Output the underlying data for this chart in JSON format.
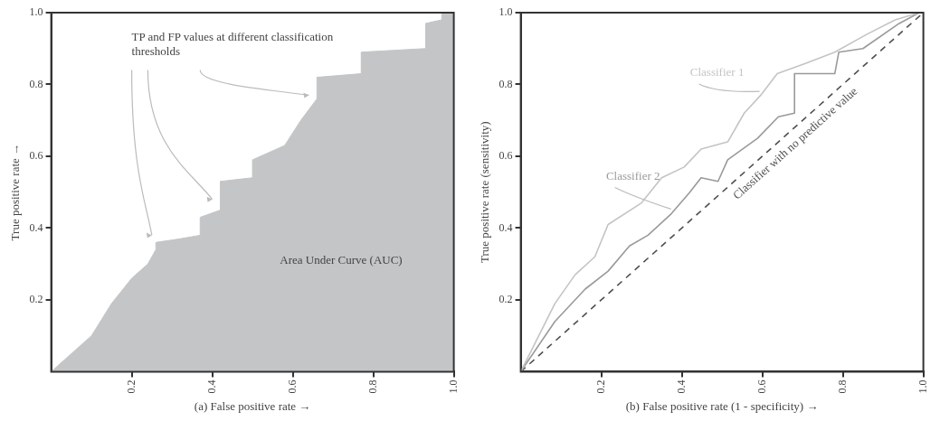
{
  "chart_data": [
    {
      "type": "area",
      "xlabel": "(a) False positive rate →",
      "ylabel": "True positive rate →",
      "xlim": [
        0,
        1
      ],
      "ylim": [
        0,
        1
      ],
      "xticks": [
        0.2,
        0.4,
        0.6,
        0.8,
        {
          "value": 1,
          "label": "1.0"
        }
      ],
      "yticks": [
        0.2,
        0.4,
        0.6,
        0.8,
        {
          "value": 1,
          "label": "1.0"
        }
      ],
      "annotations": [
        "TP and FP values at different classification thresholds",
        "Area Under Curve (AUC)"
      ],
      "series": [
        {
          "color": "#c3c5c7",
          "x": [
            0,
            0.05,
            0.1,
            0.15,
            0.2,
            0.24,
            0.26,
            0.26,
            0.32,
            0.37,
            0.37,
            0.42,
            0.42,
            0.5,
            0.5,
            0.58,
            0.62,
            0.66,
            0.66,
            0.77,
            0.77,
            0.93,
            0.93,
            0.97,
            0.97,
            1
          ],
          "values": [
            0,
            0.05,
            0.1,
            0.19,
            0.26,
            0.3,
            0.34,
            0.36,
            0.37,
            0.38,
            0.43,
            0.45,
            0.53,
            0.54,
            0.59,
            0.63,
            0.7,
            0.76,
            0.82,
            0.83,
            0.89,
            0.9,
            0.97,
            0.98,
            1,
            1
          ]
        }
      ]
    },
    {
      "type": "line",
      "xlabel": "(b) False positive rate (1 - specificity) →",
      "ylabel": "True positive rate (sensitivity)",
      "xlim": [
        0,
        1
      ],
      "ylim": [
        0,
        1
      ],
      "xticks": [
        0.2,
        0.4,
        0.6,
        0.8,
        {
          "value": 1,
          "label": "1.0"
        }
      ],
      "yticks": [
        0.2,
        0.4,
        0.6,
        0.8,
        {
          "value": 1,
          "label": "1.0"
        }
      ],
      "marker": "none",
      "series": [
        {
          "name": "Classifier 1",
          "color": "#c4c4c4",
          "x": [
            0,
            0.085,
            0.135,
            0.184,
            0.217,
            0.3,
            0.35,
            0.406,
            0.448,
            0.514,
            0.555,
            0.596,
            0.637,
            0.71,
            0.78,
            0.86,
            0.93,
            0.99
          ],
          "values": [
            0,
            0.19,
            0.27,
            0.32,
            0.41,
            0.47,
            0.54,
            0.57,
            0.62,
            0.64,
            0.72,
            0.77,
            0.83,
            0.86,
            0.89,
            0.94,
            0.98,
            1
          ]
        },
        {
          "name": "Classifier 2",
          "color": "#9a9a9a",
          "x": [
            0,
            0.085,
            0.16,
            0.217,
            0.27,
            0.316,
            0.374,
            0.42,
            0.448,
            0.49,
            0.514,
            0.588,
            0.64,
            0.68,
            0.68,
            0.78,
            0.79,
            0.85,
            0.94,
            0.99
          ],
          "values": [
            0,
            0.14,
            0.23,
            0.28,
            0.35,
            0.38,
            0.44,
            0.5,
            0.54,
            0.53,
            0.59,
            0.65,
            0.71,
            0.72,
            0.83,
            0.83,
            0.89,
            0.9,
            0.97,
            1
          ]
        },
        {
          "name": "Classifier with no predictive value",
          "color": "#505050",
          "line_style": "dashed",
          "x": [
            0,
            1
          ],
          "values": [
            0,
            1
          ]
        }
      ]
    }
  ]
}
